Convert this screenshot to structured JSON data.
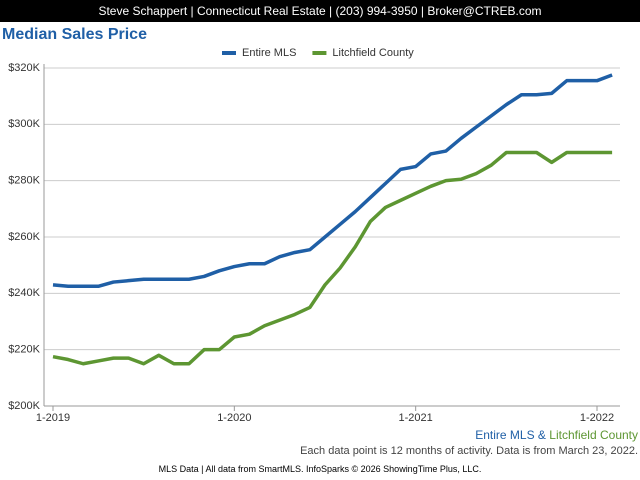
{
  "header": "Steve Schappert | Connecticut Real Estate | (203) 994-3950 | Broker@CTREB.com",
  "chart_data": {
    "type": "line",
    "title": "Median Sales Price",
    "categories": [
      "1-2019",
      null,
      null,
      null,
      null,
      null,
      null,
      null,
      null,
      null,
      null,
      null,
      "1-2020",
      null,
      null,
      null,
      null,
      null,
      null,
      null,
      null,
      null,
      null,
      null,
      "1-2021",
      null,
      null,
      null,
      null,
      null,
      null,
      null,
      null,
      null,
      null,
      null,
      "1-2022",
      null
    ],
    "series": [
      {
        "name": "Entire MLS",
        "color": "#1f5fa6",
        "values": [
          243000,
          242500,
          242500,
          242500,
          244000,
          244500,
          245000,
          245000,
          245000,
          245000,
          246000,
          248000,
          249500,
          250500,
          250500,
          253000,
          254500,
          255500,
          260000,
          264500,
          269000,
          274000,
          279000,
          284000,
          285000,
          289500,
          290500,
          295000,
          299000,
          303000,
          307000,
          310500,
          310500,
          311000,
          315500,
          315500,
          315500,
          317500
        ]
      },
      {
        "name": "Litchfield County",
        "color": "#5d9632",
        "values": [
          217500,
          216500,
          215000,
          216000,
          217000,
          217000,
          215000,
          218000,
          215000,
          215000,
          220000,
          220000,
          224500,
          225500,
          228500,
          230500,
          232500,
          235000,
          243000,
          249000,
          256500,
          265500,
          270500,
          273000,
          275500,
          278000,
          280000,
          280500,
          282500,
          285500,
          290000,
          290000,
          290000,
          286500,
          290000,
          290000,
          290000,
          290000
        ]
      }
    ],
    "ylim": [
      200000,
      320000
    ],
    "yticks": [
      {
        "value": 200000,
        "label": "$200K"
      },
      {
        "value": 220000,
        "label": "$220K"
      },
      {
        "value": 240000,
        "label": "$240K"
      },
      {
        "value": 260000,
        "label": "$260K"
      },
      {
        "value": 280000,
        "label": "$280K"
      },
      {
        "value": 300000,
        "label": "$300K"
      },
      {
        "value": 320000,
        "label": "$320K"
      }
    ],
    "grid": true,
    "caption_joiner": "&"
  },
  "footer": {
    "note": "Each data point is 12 months of activity. Data is from March 23, 2022.",
    "credit": "MLS Data | All data from SmartMLS. InfoSparks © 2026 ShowingTime Plus, LLC."
  }
}
